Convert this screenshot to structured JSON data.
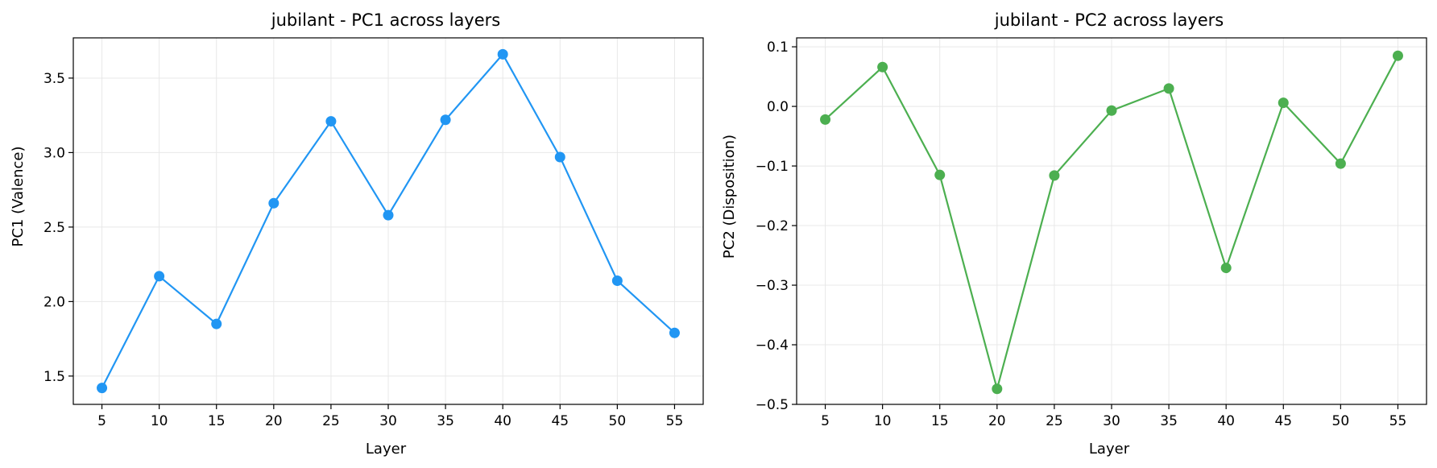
{
  "chart_data": [
    {
      "type": "line",
      "title": "jubilant - PC1 across layers",
      "xlabel": "Layer",
      "ylabel": "PC1 (Valence)",
      "x": [
        5,
        10,
        15,
        20,
        25,
        30,
        35,
        40,
        45,
        50,
        55
      ],
      "series": [
        {
          "values": [
            1.42,
            2.17,
            1.85,
            2.66,
            3.21,
            2.58,
            3.22,
            3.66,
            2.97,
            2.14,
            1.79
          ]
        }
      ],
      "xticks": [
        "5",
        "10",
        "15",
        "20",
        "25",
        "30",
        "35",
        "40",
        "45",
        "50",
        "55"
      ],
      "yticks": [
        "1.5",
        "2.0",
        "2.5",
        "3.0",
        "3.5"
      ],
      "xlim": [
        2.5,
        57.5
      ],
      "ylim": [
        1.31,
        3.77
      ],
      "grid": true,
      "color": "#2196F3"
    },
    {
      "type": "line",
      "title": "jubilant - PC2 across layers",
      "xlabel": "Layer",
      "ylabel": "PC2 (Disposition)",
      "x": [
        5,
        10,
        15,
        20,
        25,
        30,
        35,
        40,
        45,
        50,
        55
      ],
      "series": [
        {
          "values": [
            -0.022,
            0.066,
            -0.115,
            -0.474,
            -0.116,
            -0.007,
            0.03,
            -0.271,
            0.006,
            -0.096,
            0.085
          ]
        }
      ],
      "xticks": [
        "5",
        "10",
        "15",
        "20",
        "25",
        "30",
        "35",
        "40",
        "45",
        "50",
        "55"
      ],
      "yticks": [
        "0.1",
        "0.0",
        "−0.1",
        "−0.2",
        "−0.3",
        "−0.4",
        "−0.5"
      ],
      "ytick_values": [
        0.1,
        0.0,
        -0.1,
        -0.2,
        -0.3,
        -0.4,
        -0.5
      ],
      "xlim": [
        2.5,
        57.5
      ],
      "ylim": [
        -0.5,
        0.115
      ],
      "grid": true,
      "color": "#4CAF50"
    }
  ]
}
